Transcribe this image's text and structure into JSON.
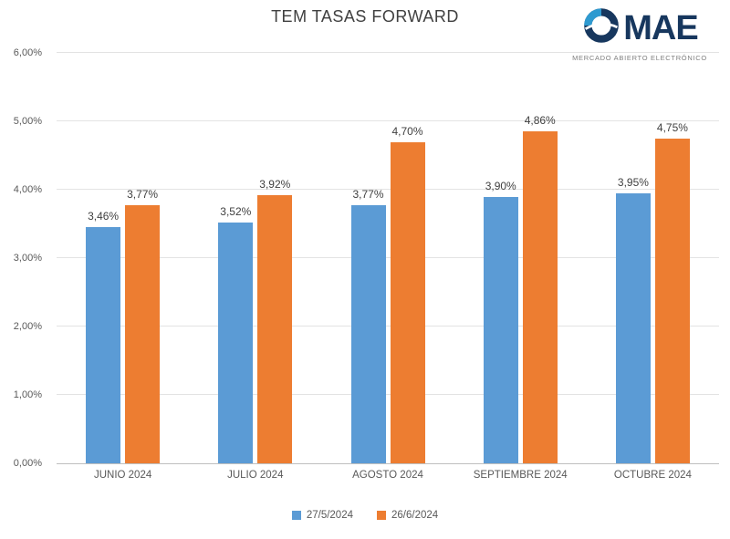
{
  "logo": {
    "text": "MAE",
    "subtitle": "MERCADO ABIERTO ELECTRÓNICO"
  },
  "chart_data": {
    "type": "bar",
    "title": "TEM TASAS FORWARD",
    "categories": [
      "JUNIO 2024",
      "JULIO 2024",
      "AGOSTO 2024",
      "SEPTIEMBRE 2024",
      "OCTUBRE 2024"
    ],
    "series": [
      {
        "name": "27/5/2024",
        "color": "#5B9BD5",
        "values": [
          3.46,
          3.52,
          3.77,
          3.9,
          3.95
        ],
        "labels": [
          "3,46%",
          "3,52%",
          "3,77%",
          "3,90%",
          "3,95%"
        ]
      },
      {
        "name": "26/6/2024",
        "color": "#ED7D31",
        "values": [
          3.77,
          3.92,
          4.7,
          4.86,
          4.75
        ],
        "labels": [
          "3,77%",
          "3,92%",
          "4,70%",
          "4,86%",
          "4,75%"
        ]
      }
    ],
    "xlabel": "",
    "ylabel": "",
    "ylim": [
      0,
      6
    ],
    "y_ticks": [
      "0,00%",
      "1,00%",
      "2,00%",
      "3,00%",
      "4,00%",
      "5,00%",
      "6,00%"
    ],
    "grid": true,
    "legend_position": "bottom"
  }
}
